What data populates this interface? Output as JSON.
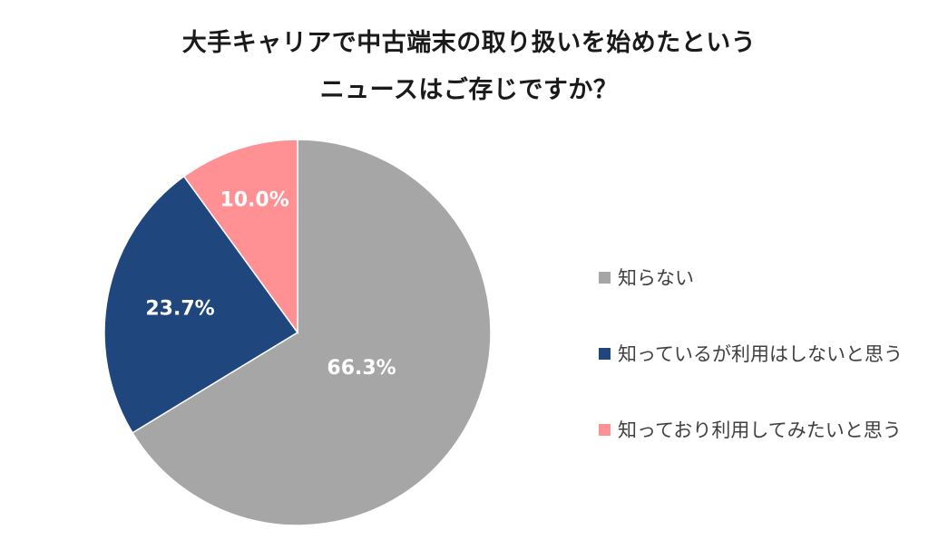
{
  "chart_data": {
    "type": "pie",
    "title_lines": [
      "大手キャリアで中古端末の取り扱いを始めたという",
      "ニュースはご存じですか？"
    ],
    "slices": [
      {
        "label": "知らない",
        "value": 66.3,
        "value_label": "66.3%",
        "color": "#a6a6a6"
      },
      {
        "label": "知っているが利用はしないと思う",
        "value": 23.7,
        "value_label": "23.7%",
        "color": "#1f467d"
      },
      {
        "label": "知っており利用してみたいと思う",
        "value": 10.0,
        "value_label": "10.0%",
        "color": "#ff9093"
      }
    ],
    "legend_position": "right",
    "start_angle": "top",
    "direction": "clockwise"
  }
}
